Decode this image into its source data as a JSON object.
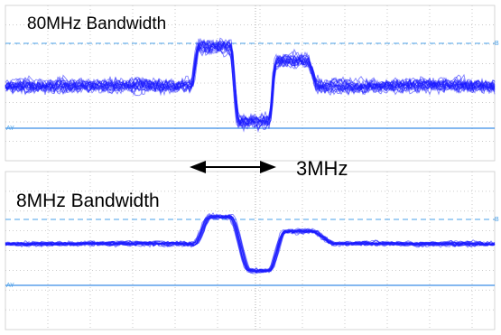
{
  "panels": [
    {
      "label": "80MHz Bandwidth",
      "marker_top": "B",
      "marker_bottom": "AY"
    },
    {
      "label": "8MHz Bandwidth",
      "marker_top": "B",
      "marker_bottom": "AY"
    }
  ],
  "annotation": {
    "label": "3MHz"
  }
}
